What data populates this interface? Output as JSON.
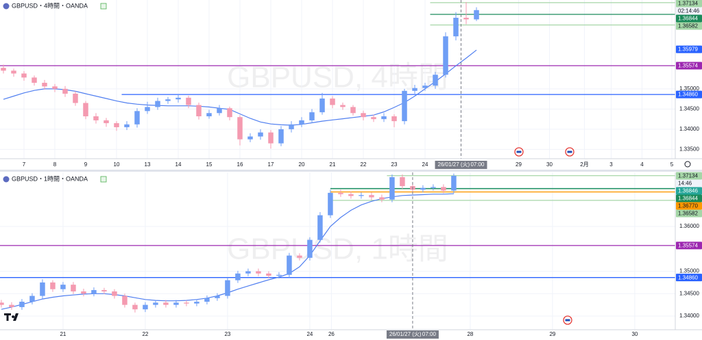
{
  "chart_data": [
    {
      "type": "candlestick",
      "title": "GBPUSD・4時間・OANDA",
      "watermark": "GBPUSD, 4時間",
      "up_color": "#6f9ef5",
      "down_color": "#f49ab0",
      "open": [
        1.3552,
        1.3545,
        1.3538,
        1.3528,
        1.3515,
        1.3506,
        1.35,
        1.3488,
        1.3465,
        1.3432,
        1.3422,
        1.3415,
        1.3405,
        1.3412,
        1.3445,
        1.3455,
        1.347,
        1.3474,
        1.3478,
        1.346,
        1.3432,
        1.344,
        1.3452,
        1.343,
        1.3375,
        1.3382,
        1.3392,
        1.3365,
        1.34,
        1.3412,
        1.3422,
        1.3442,
        1.3476,
        1.346,
        1.3455,
        1.344,
        1.343,
        1.3425,
        1.3432,
        1.342,
        1.3495,
        1.3502,
        1.3508,
        1.3535,
        1.363,
        1.3676,
        1.3672
      ],
      "high": [
        1.356,
        1.355,
        1.3544,
        1.3533,
        1.3522,
        1.3512,
        1.3507,
        1.3494,
        1.347,
        1.344,
        1.3428,
        1.342,
        1.342,
        1.3452,
        1.3468,
        1.3478,
        1.348,
        1.3486,
        1.3483,
        1.3466,
        1.3448,
        1.346,
        1.3456,
        1.3435,
        1.339,
        1.34,
        1.3398,
        1.3408,
        1.342,
        1.343,
        1.345,
        1.349,
        1.3482,
        1.3466,
        1.346,
        1.3446,
        1.3436,
        1.344,
        1.3437,
        1.35,
        1.351,
        1.3515,
        1.3542,
        1.364,
        1.369,
        1.3715,
        1.3702
      ],
      "low": [
        1.3538,
        1.353,
        1.352,
        1.3508,
        1.3498,
        1.3492,
        1.348,
        1.3458,
        1.3425,
        1.3414,
        1.3406,
        1.3396,
        1.3398,
        1.3404,
        1.3438,
        1.3448,
        1.3463,
        1.3466,
        1.3452,
        1.3424,
        1.3426,
        1.3434,
        1.3422,
        1.336,
        1.3368,
        1.3374,
        1.3352,
        1.3358,
        1.3392,
        1.3405,
        1.3415,
        1.3436,
        1.3452,
        1.3448,
        1.3434,
        1.3422,
        1.3418,
        1.3418,
        1.3405,
        1.3412,
        1.3488,
        1.3495,
        1.35,
        1.3528,
        1.362,
        1.366,
        1.3668
      ],
      "close": [
        1.3545,
        1.3538,
        1.3528,
        1.3515,
        1.3506,
        1.35,
        1.3488,
        1.3465,
        1.3432,
        1.3422,
        1.3415,
        1.3405,
        1.3412,
        1.3445,
        1.3455,
        1.347,
        1.3474,
        1.3478,
        1.346,
        1.3432,
        1.344,
        1.3452,
        1.343,
        1.3375,
        1.3382,
        1.3392,
        1.3365,
        1.34,
        1.3412,
        1.3422,
        1.3442,
        1.3476,
        1.346,
        1.3455,
        1.344,
        1.343,
        1.3425,
        1.3432,
        1.342,
        1.3495,
        1.3502,
        1.3508,
        1.3535,
        1.363,
        1.3676,
        1.3672,
        1.3695
      ],
      "ma": {
        "color": "#4f7ef0",
        "values": [
          1.3474,
          1.3482,
          1.349,
          1.3496,
          1.35,
          1.35,
          1.3498,
          1.3494,
          1.3488,
          1.3482,
          1.3476,
          1.347,
          1.3465,
          1.3462,
          1.346,
          1.3459,
          1.3458,
          1.3458,
          1.3458,
          1.3457,
          1.3455,
          1.3452,
          1.3449,
          1.3438,
          1.3427,
          1.3418,
          1.3413,
          1.3411,
          1.341,
          1.3412,
          1.3416,
          1.342,
          1.3423,
          1.3426,
          1.3429,
          1.3432,
          1.3435,
          1.3443,
          1.3454,
          1.3466,
          1.3482,
          1.35,
          1.3518,
          1.3537,
          1.3557,
          1.3576,
          1.3596
        ]
      },
      "xlim": [
        -0.333,
        65.333
      ],
      "xticks": [
        {
          "value": 2,
          "label": "7"
        },
        {
          "value": 5,
          "label": "8"
        },
        {
          "value": 8,
          "label": "9"
        },
        {
          "value": 11,
          "label": "10"
        },
        {
          "value": 14,
          "label": "13"
        },
        {
          "value": 17,
          "label": "14"
        },
        {
          "value": 20,
          "label": "15"
        },
        {
          "value": 23,
          "label": "16"
        },
        {
          "value": 26,
          "label": "17"
        },
        {
          "value": 29,
          "label": "20"
        },
        {
          "value": 32,
          "label": "21"
        },
        {
          "value": 35,
          "label": "22"
        },
        {
          "value": 38,
          "label": "23"
        },
        {
          "value": 41,
          "label": "24"
        },
        {
          "value": 50.1,
          "label": "29"
        },
        {
          "value": 53.1,
          "label": "30"
        },
        {
          "value": 56.5,
          "label": "2月"
        },
        {
          "value": 59.1,
          "label": "3"
        },
        {
          "value": 62.1,
          "label": "4"
        },
        {
          "value": 65,
          "label": "5"
        }
      ],
      "ylim": [
        1.3327,
        1.372
      ],
      "yticks": [
        {
          "value": 1.335,
          "label": "1.33500"
        },
        {
          "value": 1.34,
          "label": "1.34000"
        },
        {
          "value": 1.345,
          "label": "1.34500"
        },
        {
          "value": 1.35,
          "label": "1.35000"
        }
      ],
      "grid": true,
      "levels": [
        {
          "value": 1.37134,
          "label": "1.37134",
          "color": "#a5d6a7",
          "text_color": "#131722",
          "from": 41.5,
          "countdown": "02:14:46"
        },
        {
          "value": 1.36844,
          "label": "1.36844",
          "color": "#1b8a5a",
          "text_color": "#ffffff",
          "from": 41.5
        },
        {
          "value": 1.36582,
          "label": "1.36582",
          "color": "#a5d6a7",
          "text_color": "#131722",
          "from": 41.5
        },
        {
          "value": 1.35979,
          "label": "1.35979",
          "color": "#2962ff",
          "text_color": "#ffffff",
          "line": false
        },
        {
          "value": 1.35574,
          "label": "1.35574",
          "color": "#9c27b0",
          "text_color": "#ffffff"
        },
        {
          "value": 1.3486,
          "label": "1.34860",
          "color": "#2962ff",
          "text_color": "#ffffff",
          "from": 11.5
        }
      ],
      "crosshair": {
        "x": 44.5,
        "date": "26/01/27 (火)",
        "time": "07:00"
      }
    },
    {
      "type": "candlestick",
      "title": "GBPUSD・1時間・OANDA",
      "watermark": "GBPUSD, 1時間",
      "up_color": "#6f9ef5",
      "down_color": "#f49ab0",
      "open": [
        1.343,
        1.3425,
        1.342,
        1.3432,
        1.3445,
        1.3475,
        1.346,
        1.347,
        1.3455,
        1.345,
        1.3458,
        1.3455,
        1.3445,
        1.3425,
        1.3415,
        1.3425,
        1.343,
        1.3425,
        1.343,
        1.3428,
        1.3432,
        1.344,
        1.3445,
        1.348,
        1.3495,
        1.35,
        1.3495,
        1.349,
        1.3492,
        1.3535,
        1.353,
        1.357,
        1.3625,
        1.3675,
        1.3672,
        1.3668,
        1.367,
        1.3665,
        1.366,
        1.371,
        1.369,
        1.3682,
        1.3686,
        1.3688,
        1.368
      ],
      "high": [
        1.3436,
        1.3431,
        1.3438,
        1.3451,
        1.3482,
        1.348,
        1.3476,
        1.3476,
        1.3461,
        1.3464,
        1.3463,
        1.346,
        1.345,
        1.343,
        1.3431,
        1.3436,
        1.3436,
        1.3436,
        1.3435,
        1.3437,
        1.3446,
        1.3451,
        1.3486,
        1.3501,
        1.3506,
        1.3506,
        1.35,
        1.3498,
        1.3541,
        1.354,
        1.3576,
        1.3632,
        1.3682,
        1.3682,
        1.3678,
        1.3676,
        1.3676,
        1.3671,
        1.3716,
        1.3716,
        1.3696,
        1.3692,
        1.3694,
        1.3694,
        1.3718
      ],
      "low": [
        1.3419,
        1.3414,
        1.3414,
        1.3426,
        1.3439,
        1.3454,
        1.3454,
        1.3449,
        1.3444,
        1.3444,
        1.3449,
        1.3439,
        1.3419,
        1.3408,
        1.3409,
        1.3419,
        1.3419,
        1.3419,
        1.3422,
        1.3422,
        1.3426,
        1.3434,
        1.3439,
        1.3474,
        1.3489,
        1.3489,
        1.3484,
        1.3484,
        1.3486,
        1.3524,
        1.3524,
        1.3564,
        1.3619,
        1.3666,
        1.3662,
        1.3662,
        1.3659,
        1.3654,
        1.3654,
        1.3684,
        1.3676,
        1.3676,
        1.368,
        1.3674,
        1.3674
      ],
      "close": [
        1.3425,
        1.342,
        1.3432,
        1.3445,
        1.3475,
        1.346,
        1.347,
        1.3455,
        1.345,
        1.3458,
        1.3455,
        1.3445,
        1.3425,
        1.3415,
        1.3425,
        1.343,
        1.3425,
        1.343,
        1.3428,
        1.3432,
        1.344,
        1.3445,
        1.348,
        1.3495,
        1.35,
        1.3495,
        1.349,
        1.3492,
        1.3535,
        1.353,
        1.357,
        1.3625,
        1.3675,
        1.3672,
        1.3668,
        1.367,
        1.3665,
        1.366,
        1.371,
        1.369,
        1.3682,
        1.3686,
        1.3688,
        1.368,
        1.3713
      ],
      "ma": {
        "color": "#4f7ef0",
        "values": [
          1.3415,
          1.342,
          1.3426,
          1.3432,
          1.3438,
          1.3442,
          1.3445,
          1.3447,
          1.3449,
          1.345,
          1.345,
          1.3448,
          1.3445,
          1.3441,
          1.3437,
          1.3435,
          1.3434,
          1.3434,
          1.3435,
          1.3437,
          1.344,
          1.3445,
          1.3452,
          1.346,
          1.3467,
          1.3474,
          1.3481,
          1.3487,
          1.3495,
          1.351,
          1.3535,
          1.3568,
          1.36,
          1.362,
          1.3636,
          1.3648,
          1.3656,
          1.3662,
          1.3666,
          1.3669,
          1.367,
          1.3671,
          1.3672,
          1.3672,
          1.3673
        ]
      },
      "xlim": [
        -0.13,
        65.54
      ],
      "xticks": [
        {
          "value": 6,
          "label": "21"
        },
        {
          "value": 14,
          "label": "22"
        },
        {
          "value": 22,
          "label": "23"
        },
        {
          "value": 30,
          "label": "24"
        },
        {
          "value": 32.1,
          "label": "26"
        },
        {
          "value": 45.6,
          "label": "28"
        },
        {
          "value": 53.6,
          "label": "29"
        },
        {
          "value": 61.6,
          "label": "30"
        }
      ],
      "ylim": [
        1.33695,
        1.37206
      ],
      "yticks": [
        {
          "value": 1.34,
          "label": "1.34000"
        },
        {
          "value": 1.345,
          "label": "1.34500"
        },
        {
          "value": 1.35,
          "label": "1.35000"
        },
        {
          "value": 1.36,
          "label": "1.36000"
        }
      ],
      "grid": true,
      "levels": [
        {
          "value": 1.37134,
          "label": "1.37134",
          "color": "#a5d6a7",
          "text_color": "#131722",
          "from": 37.5,
          "countdown": "14:46"
        },
        {
          "value": 1.36846,
          "label": "1.36846",
          "color": "#26a69a",
          "text_color": "#ffffff",
          "from": 32
        },
        {
          "value": 1.36844,
          "label": "1.36844",
          "color": "#1b8a5a",
          "text_color": "#ffffff",
          "from": 32
        },
        {
          "value": 1.3677,
          "label": "1.36770",
          "color": "#ff9800",
          "text_color": "#131722",
          "from": 32
        },
        {
          "value": 1.36582,
          "label": "1.36582",
          "color": "#a5d6a7",
          "text_color": "#131722",
          "from": 32
        },
        {
          "value": 1.35574,
          "label": "1.35574",
          "color": "#9c27b0",
          "text_color": "#ffffff"
        },
        {
          "value": 1.3486,
          "label": "1.34860",
          "color": "#2962ff",
          "text_color": "#ffffff"
        }
      ],
      "crosshair": {
        "x": 40,
        "date": "26/01/27 (火)",
        "time": "07:00"
      }
    }
  ]
}
